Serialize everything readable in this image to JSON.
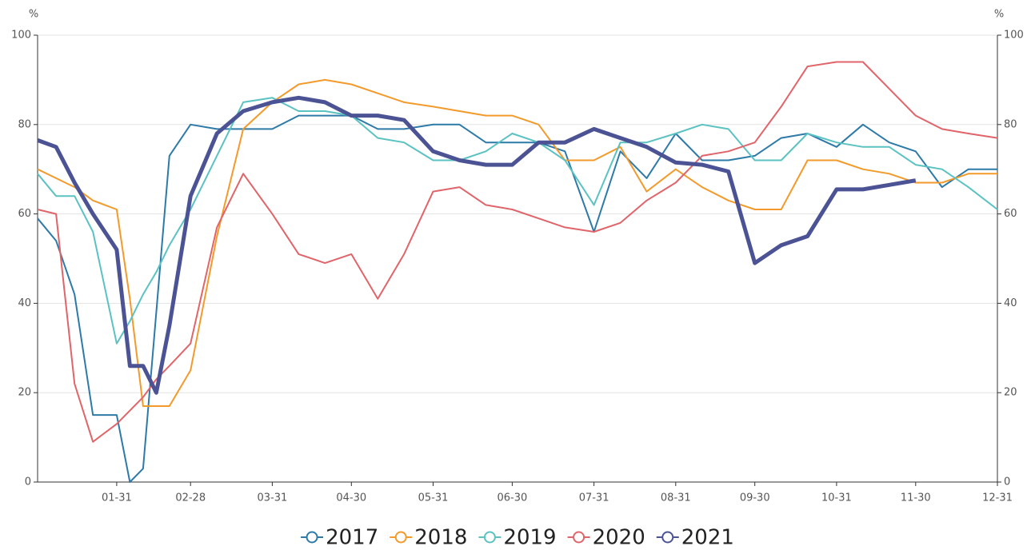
{
  "chart_data": {
    "type": "line",
    "y_unit": "%",
    "y2_unit": "%",
    "x": [
      "01-01",
      "01-08",
      "01-15",
      "01-22",
      "01-31",
      "02-05",
      "02-10",
      "02-15",
      "02-20",
      "02-28",
      "03-10",
      "03-20",
      "03-31",
      "04-10",
      "04-20",
      "04-30",
      "05-10",
      "05-20",
      "05-31",
      "06-10",
      "06-20",
      "06-30",
      "07-10",
      "07-20",
      "07-31",
      "08-10",
      "08-20",
      "08-31",
      "09-10",
      "09-20",
      "09-30",
      "10-10",
      "10-20",
      "10-31",
      "11-10",
      "11-20",
      "11-30",
      "12-10",
      "12-20",
      "12-31"
    ],
    "xlim": [
      "01-01",
      "12-31"
    ],
    "xticks": [
      "01-31",
      "02-28",
      "03-31",
      "04-30",
      "05-31",
      "06-30",
      "07-31",
      "08-31",
      "09-30",
      "10-31",
      "11-30",
      "12-31"
    ],
    "ylim": [
      0,
      100
    ],
    "yticks": [
      0,
      20,
      40,
      60,
      80,
      100
    ],
    "y2lim": [
      0,
      100
    ],
    "y2ticks": [
      0,
      20,
      40,
      60,
      80,
      100
    ],
    "grid": true,
    "legend": "bottom",
    "series": [
      {
        "name": "2017",
        "color": "#2d7aa8",
        "width": 2,
        "values": [
          59,
          54,
          42,
          15,
          15,
          0,
          3,
          38,
          73,
          80,
          79,
          79,
          79,
          82,
          82,
          82,
          79,
          79,
          80,
          80,
          76,
          76,
          76,
          74,
          56,
          74,
          68,
          78,
          72,
          72,
          73,
          77,
          78,
          75,
          80,
          76,
          74,
          66,
          70,
          70
        ]
      },
      {
        "name": "2018",
        "color": "#f39a2b",
        "width": 2,
        "values": [
          70,
          68,
          66,
          63,
          61,
          41,
          17,
          17,
          17,
          25,
          55,
          79,
          85,
          89,
          90,
          89,
          87,
          85,
          84,
          83,
          82,
          82,
          80,
          72,
          72,
          75,
          65,
          70,
          66,
          63,
          61,
          61,
          72,
          72,
          70,
          69,
          67,
          67,
          69,
          69
        ]
      },
      {
        "name": "2019",
        "color": "#5bc2c2",
        "width": 2,
        "values": [
          69,
          64,
          64,
          56,
          31,
          36,
          42,
          47,
          53,
          61,
          73,
          85,
          86,
          83,
          83,
          82,
          77,
          76,
          72,
          72,
          74,
          78,
          76,
          72,
          62,
          76,
          76,
          78,
          80,
          79,
          72,
          72,
          78,
          76,
          75,
          75,
          71,
          70,
          66,
          61
        ]
      },
      {
        "name": "2020",
        "color": "#e06469",
        "width": 2,
        "values": [
          61,
          60,
          22,
          9,
          13,
          16,
          19,
          23,
          26,
          31,
          57,
          69,
          60,
          51,
          49,
          51,
          41,
          51,
          65,
          66,
          62,
          61,
          59,
          57,
          56,
          58,
          63,
          67,
          73,
          74,
          76,
          84,
          93,
          94,
          94,
          88,
          82,
          79,
          78,
          77
        ]
      },
      {
        "name": "2021",
        "color": "#4b5394",
        "width": 5,
        "values": [
          76.5,
          75,
          67,
          60,
          52,
          26,
          26,
          20,
          35,
          64,
          78,
          83,
          85,
          86,
          85,
          82,
          82,
          81,
          74,
          72,
          71,
          71,
          76,
          76,
          79,
          77,
          75,
          71.5,
          71,
          69.5,
          49,
          53,
          55,
          65.5,
          65.5,
          66.5,
          67.5,
          null,
          null,
          null
        ]
      }
    ]
  }
}
